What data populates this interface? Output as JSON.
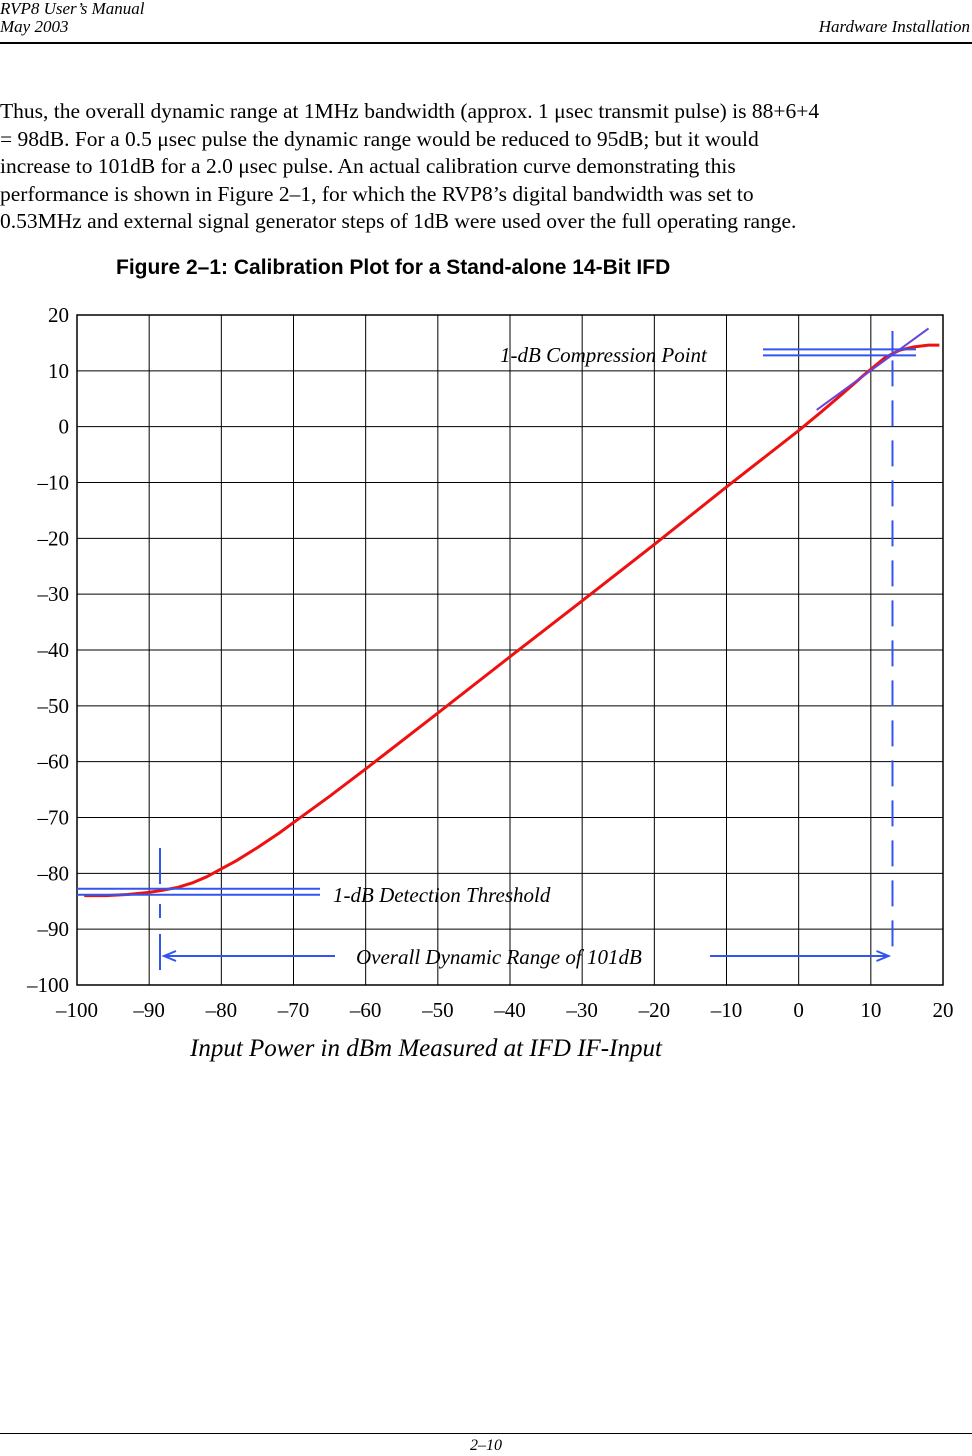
{
  "header": {
    "manual_title": "RVP8 User’s Manual",
    "date": "May 2003",
    "section": "Hardware Installation"
  },
  "body_lines": [
    "Thus, the overall dynamic range at 1MHz bandwidth (approx. 1 μsec transmit pulse) is 88+6+4",
    "= 98dB.  For a 0.5 μsec pulse the dynamic range would be reduced to 95dB; but it would",
    "increase to 101dB for a 2.0 μsec pulse.  An actual calibration curve demonstrating this",
    "performance is shown in Figure 2–1, for which the RVP8’s digital bandwidth was set to",
    "0.53MHz and external signal generator steps of 1dB were used over the full operating range."
  ],
  "figure_title": "Figure 2–1: Calibration Plot for a Stand-alone 14-Bit IFD",
  "footer": {
    "page_number": "2–10"
  },
  "chart_data": {
    "type": "line",
    "title": "",
    "xlabel": "Input Power in dBm Measured at IFD IF-Input",
    "ylabel": "",
    "xlim": [
      -100,
      20
    ],
    "ylim": [
      -100,
      20
    ],
    "x_ticks": [
      -100,
      -90,
      -80,
      -70,
      -60,
      -50,
      -40,
      -30,
      -20,
      -10,
      0,
      10,
      20
    ],
    "y_ticks": [
      20,
      10,
      0,
      -10,
      -20,
      -30,
      -40,
      -50,
      -60,
      -70,
      -80,
      -90,
      -100
    ],
    "x_tick_labels": [
      "–100",
      "–90",
      "–80",
      "–70",
      "–60",
      "–50",
      "–40",
      "–30",
      "–20",
      "–10",
      "0",
      "10",
      "20"
    ],
    "y_tick_labels": [
      "20",
      "10",
      "0",
      "–10",
      "–20",
      "–30",
      "–40",
      "–50",
      "–60",
      "–70",
      "–80",
      "–90",
      "–100"
    ],
    "grid": true,
    "colors": {
      "curve": "#ee1111",
      "annotation": "#3355ee",
      "ideal": "#6644dd"
    },
    "series": [
      {
        "values_x": [
          -99,
          -96,
          -93,
          -90,
          -88,
          -86,
          -84,
          -82,
          -80,
          -78,
          -75,
          -72,
          -70,
          -65,
          -60,
          -50,
          -40,
          -30,
          -20,
          -10,
          0,
          3,
          6,
          9,
          12,
          14,
          16,
          18,
          19.5
        ],
        "values_y": [
          -84,
          -84,
          -83.8,
          -83.4,
          -83,
          -82.5,
          -81.7,
          -80.6,
          -79.2,
          -77.8,
          -75.4,
          -72.8,
          -70.9,
          -66.2,
          -61.3,
          -51.3,
          -41.2,
          -31.2,
          -21.1,
          -10.8,
          -0.7,
          2.5,
          5.8,
          9.2,
          12.4,
          13.7,
          14.3,
          14.6,
          14.6
        ]
      },
      {
        "values_x": [
          2.5,
          18
        ],
        "values_y": [
          3,
          17.6
        ]
      }
    ],
    "annotations": {
      "compression_label": "1-dB Compression Point",
      "detection_label": "1-dB Detection Threshold",
      "range_label": "Overall Dynamic Range of 101dB",
      "compression_x": 13,
      "compression_y": 13.3,
      "detection_x": -88.5,
      "detection_y": -83.3
    }
  }
}
